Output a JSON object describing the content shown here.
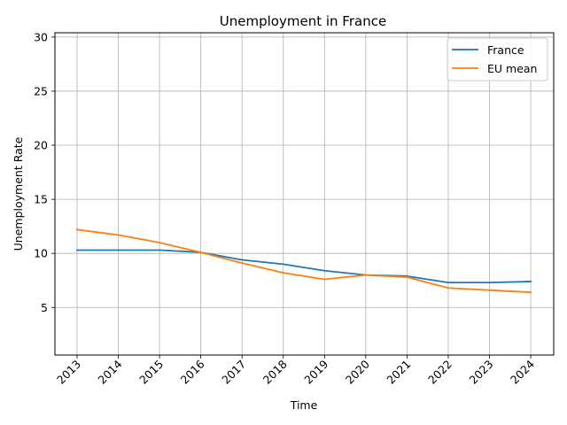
{
  "chart_data": {
    "type": "line",
    "title": "Unemployment in France",
    "xlabel": "Time",
    "ylabel": "Unemployment Rate",
    "x": [
      "2013",
      "2014",
      "2015",
      "2016",
      "2017",
      "2018",
      "2019",
      "2020",
      "2021",
      "2022",
      "2023",
      "2024"
    ],
    "series": [
      {
        "name": "France",
        "color": "#1f77b4",
        "values": [
          10.3,
          10.3,
          10.3,
          10.1,
          9.4,
          9.0,
          8.4,
          8.0,
          7.9,
          7.3,
          7.3,
          7.4
        ]
      },
      {
        "name": "EU mean",
        "color": "#ff7f0e",
        "values": [
          12.2,
          11.7,
          11.0,
          10.1,
          9.1,
          8.2,
          7.6,
          8.0,
          7.8,
          6.8,
          6.6,
          6.4
        ]
      }
    ],
    "yticks": [
      5,
      10,
      15,
      20,
      25,
      30
    ],
    "ylim": [
      0.6,
      30.4
    ],
    "grid": true,
    "legend_position": "top-right",
    "xtick_rotation": 45
  }
}
